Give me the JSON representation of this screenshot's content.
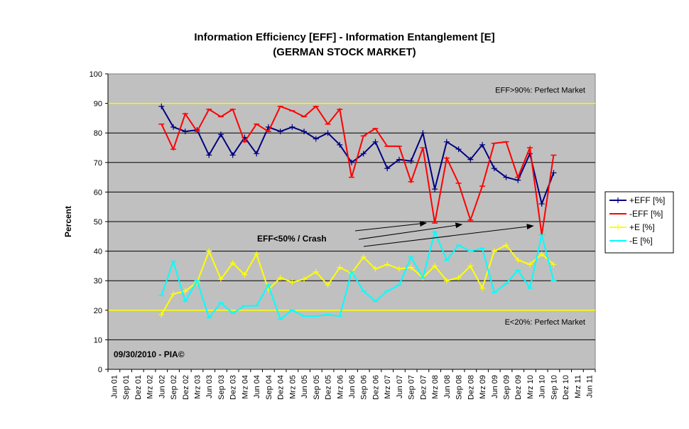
{
  "chart_data": {
    "type": "line",
    "title": "Information Efficiency [EFF] - Information Entanglement [E]",
    "subtitle": "(GERMAN STOCK MARKET)",
    "xlabel": "",
    "ylabel": "Percent",
    "ylim": [
      0,
      100
    ],
    "yticks": [
      0,
      10,
      20,
      30,
      40,
      50,
      60,
      70,
      80,
      90,
      100
    ],
    "grid": true,
    "legend_position": "right",
    "categories": [
      "Jun 01",
      "Sep 01",
      "Dez 01",
      "Mrz 02",
      "Jun 02",
      "Sep 02",
      "Dez 02",
      "Mrz 03",
      "Jun 03",
      "Sep 03",
      "Dez 03",
      "Mrz 04",
      "Jun 04",
      "Sep 04",
      "Dez 04",
      "Mrz 05",
      "Jun 05",
      "Sep 05",
      "Dez 05",
      "Mrz 06",
      "Jun 06",
      "Sep 06",
      "Dez 06",
      "Mrz 07",
      "Jun 07",
      "Sep 07",
      "Dez 07",
      "Mrz 08",
      "Jun 08",
      "Sep 08",
      "Dez 08",
      "Mrz 09",
      "Jun 09",
      "Sep 09",
      "Dez 09",
      "Mrz 10",
      "Jun 10",
      "Sep 10",
      "Dez 10",
      "Mrz 11",
      "Jun 11"
    ],
    "series": [
      {
        "name": "+EFF [%]",
        "color": "#000080",
        "marker": "plus",
        "values": [
          null,
          null,
          null,
          null,
          89,
          82,
          80.5,
          81,
          72.5,
          79.5,
          72.5,
          78.5,
          73,
          82,
          80.5,
          82,
          80.5,
          78,
          80,
          76,
          70,
          73,
          77,
          68,
          71,
          70.5,
          80,
          61,
          77,
          74.5,
          71,
          76,
          68,
          65,
          64,
          73,
          56,
          66.5,
          null,
          null,
          null
        ]
      },
      {
        "name": "-EFF [%]",
        "color": "#ff0000",
        "marker": "dash",
        "values": [
          null,
          null,
          null,
          null,
          83,
          74.5,
          86.5,
          80.5,
          88,
          85.5,
          88,
          77,
          83,
          80.5,
          89,
          87.5,
          85.5,
          89,
          83,
          88,
          65,
          79,
          81.5,
          75.5,
          75.5,
          63.5,
          75,
          49.5,
          71.5,
          63,
          50.5,
          62,
          76.5,
          77,
          65,
          75,
          45.5,
          72.5,
          null,
          null,
          null
        ]
      },
      {
        "name": "+E [%]",
        "color": "#ffff00",
        "marker": "plus",
        "values": [
          null,
          null,
          null,
          null,
          18.5,
          25.5,
          26.5,
          29.5,
          40,
          30.5,
          36,
          32,
          39,
          27,
          31,
          29.5,
          30.5,
          33,
          28.5,
          34.5,
          32.5,
          38,
          34,
          35.5,
          34,
          34.5,
          31,
          35,
          30,
          31,
          35,
          27.5,
          40,
          42,
          37,
          35.5,
          39,
          35.5,
          null,
          null,
          null
        ]
      },
      {
        "name": "-E [%]",
        "color": "#00ffff",
        "marker": "dash",
        "values": [
          null,
          null,
          null,
          null,
          25,
          36.5,
          23,
          30,
          17.5,
          22.5,
          19,
          21.5,
          21.5,
          28.5,
          17,
          20,
          18,
          18,
          18.5,
          18,
          33,
          26.5,
          23,
          26.5,
          28.5,
          38,
          31,
          46.5,
          37,
          42,
          40,
          41,
          26,
          29,
          33.5,
          27.5,
          45.5,
          30,
          null,
          null,
          null
        ]
      }
    ],
    "reference_lines": [
      {
        "value": 90,
        "label": "EFF>90%: Perfect Market",
        "color": "#ffff00"
      },
      {
        "value": 20,
        "label": "E<20%: Perfect Market",
        "color": "#ffff00"
      }
    ],
    "annotation": {
      "text": "EFF<50% / Crash",
      "arrow_targets": [
        "Mrz 08",
        "Dez 08",
        "Jun 10"
      ]
    },
    "footnote": "09/30/2010 - PIA©",
    "plot_background": "#c0c0c0"
  }
}
